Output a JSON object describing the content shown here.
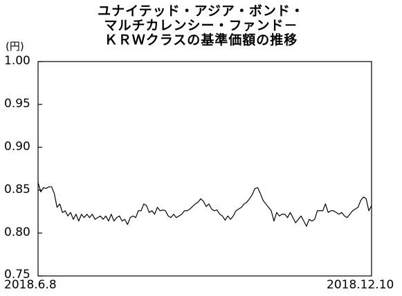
{
  "chart_data": {
    "type": "line",
    "title": [
      "ユナイテッド・アジア・ボンド・",
      "マルチカレンシー・ファンド－",
      "ＫＲＷクラスの基準価額の推移"
    ],
    "unit": "(円)",
    "ylim": [
      0.75,
      1.0
    ],
    "yticks": [
      "1.00",
      "0.95",
      "0.90",
      "0.85",
      "0.80",
      "0.75"
    ],
    "x_start_label": "2018.6.8",
    "x_end_label": "2018.12.10",
    "grid": false,
    "legend": "none",
    "line_color": "#000000",
    "series": [
      {
        "values": [
          0.859,
          0.848,
          0.853,
          0.852,
          0.854,
          0.854,
          0.846,
          0.83,
          0.834,
          0.824,
          0.826,
          0.82,
          0.824,
          0.816,
          0.822,
          0.814,
          0.822,
          0.818,
          0.822,
          0.818,
          0.822,
          0.816,
          0.818,
          0.82,
          0.816,
          0.82,
          0.814,
          0.822,
          0.814,
          0.818,
          0.82,
          0.814,
          0.816,
          0.81,
          0.818,
          0.82,
          0.818,
          0.826,
          0.826,
          0.834,
          0.832,
          0.824,
          0.826,
          0.822,
          0.83,
          0.826,
          0.827,
          0.826,
          0.82,
          0.818,
          0.822,
          0.818,
          0.82,
          0.822,
          0.826,
          0.826,
          0.828,
          0.831,
          0.834,
          0.836,
          0.84,
          0.837,
          0.831,
          0.834,
          0.828,
          0.826,
          0.827,
          0.822,
          0.82,
          0.815,
          0.82,
          0.816,
          0.82,
          0.826,
          0.828,
          0.83,
          0.834,
          0.836,
          0.84,
          0.845,
          0.852,
          0.853,
          0.846,
          0.838,
          0.834,
          0.83,
          0.826,
          0.814,
          0.824,
          0.82,
          0.822,
          0.822,
          0.818,
          0.824,
          0.818,
          0.812,
          0.816,
          0.82,
          0.814,
          0.808,
          0.816,
          0.814,
          0.816,
          0.826,
          0.826,
          0.826,
          0.834,
          0.824,
          0.826,
          0.826,
          0.824,
          0.822,
          0.824,
          0.82,
          0.818,
          0.822,
          0.826,
          0.828,
          0.83,
          0.838,
          0.842,
          0.84,
          0.826,
          0.832
        ]
      }
    ]
  }
}
